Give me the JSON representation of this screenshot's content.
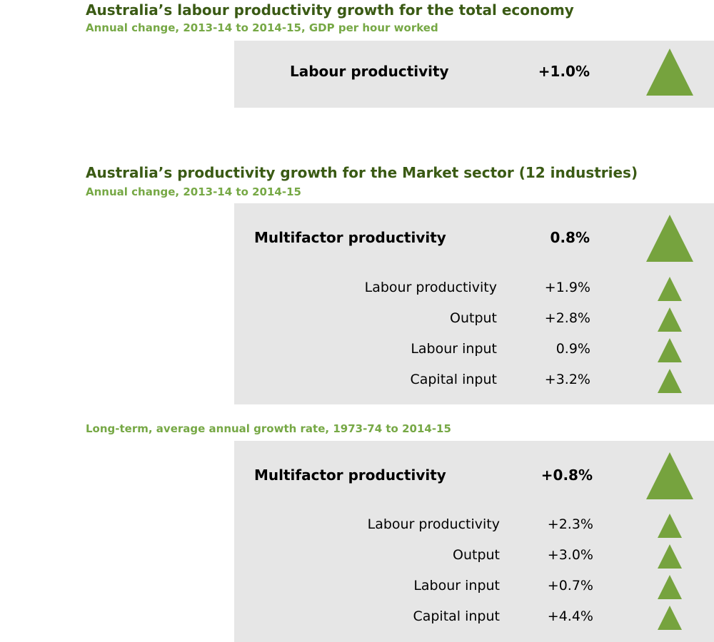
{
  "section1": {
    "title": "Australia’s labour productivity growth for the total economy",
    "subtitle": "Annual change, 2013-14 to 2014-15, GDP per hour worked",
    "label": "Labour productivity",
    "value": "+1.0%",
    "trend": "up"
  },
  "section2": {
    "title": "Australia’s productivity growth for the Market sector (12 industries)",
    "subtitle": "Annual change, 2013-14 to 2014-15",
    "headline": {
      "label": "Multifactor productivity",
      "value": "0.8%",
      "trend": "up"
    },
    "rows": [
      {
        "label": "Labour productivity",
        "value": "+1.9%",
        "trend": "up"
      },
      {
        "label": "Output",
        "value": "+2.8%",
        "trend": "up"
      },
      {
        "label": "Labour input",
        "value": "0.9%",
        "trend": "up"
      },
      {
        "label": "Capital input",
        "value": "+3.2%",
        "trend": "up"
      }
    ]
  },
  "section3": {
    "subtitle": "Long-term, average annual growth rate, 1973-74 to 2014-15",
    "headline": {
      "label": "Multifactor productivity",
      "value": "+0.8%",
      "trend": "up"
    },
    "rows": [
      {
        "label": "Labour productivity",
        "value": "+2.3%",
        "trend": "up"
      },
      {
        "label": "Output",
        "value": "+3.0%",
        "trend": "up"
      },
      {
        "label": "Labour input",
        "value": "+0.7%",
        "trend": "up"
      },
      {
        "label": "Capital input",
        "value": "+4.4%",
        "trend": "up"
      }
    ]
  },
  "colors": {
    "title": "#3a5a14",
    "subtitle": "#76a845",
    "panel": "#e6e6e6",
    "arrow": "#76a33e"
  }
}
